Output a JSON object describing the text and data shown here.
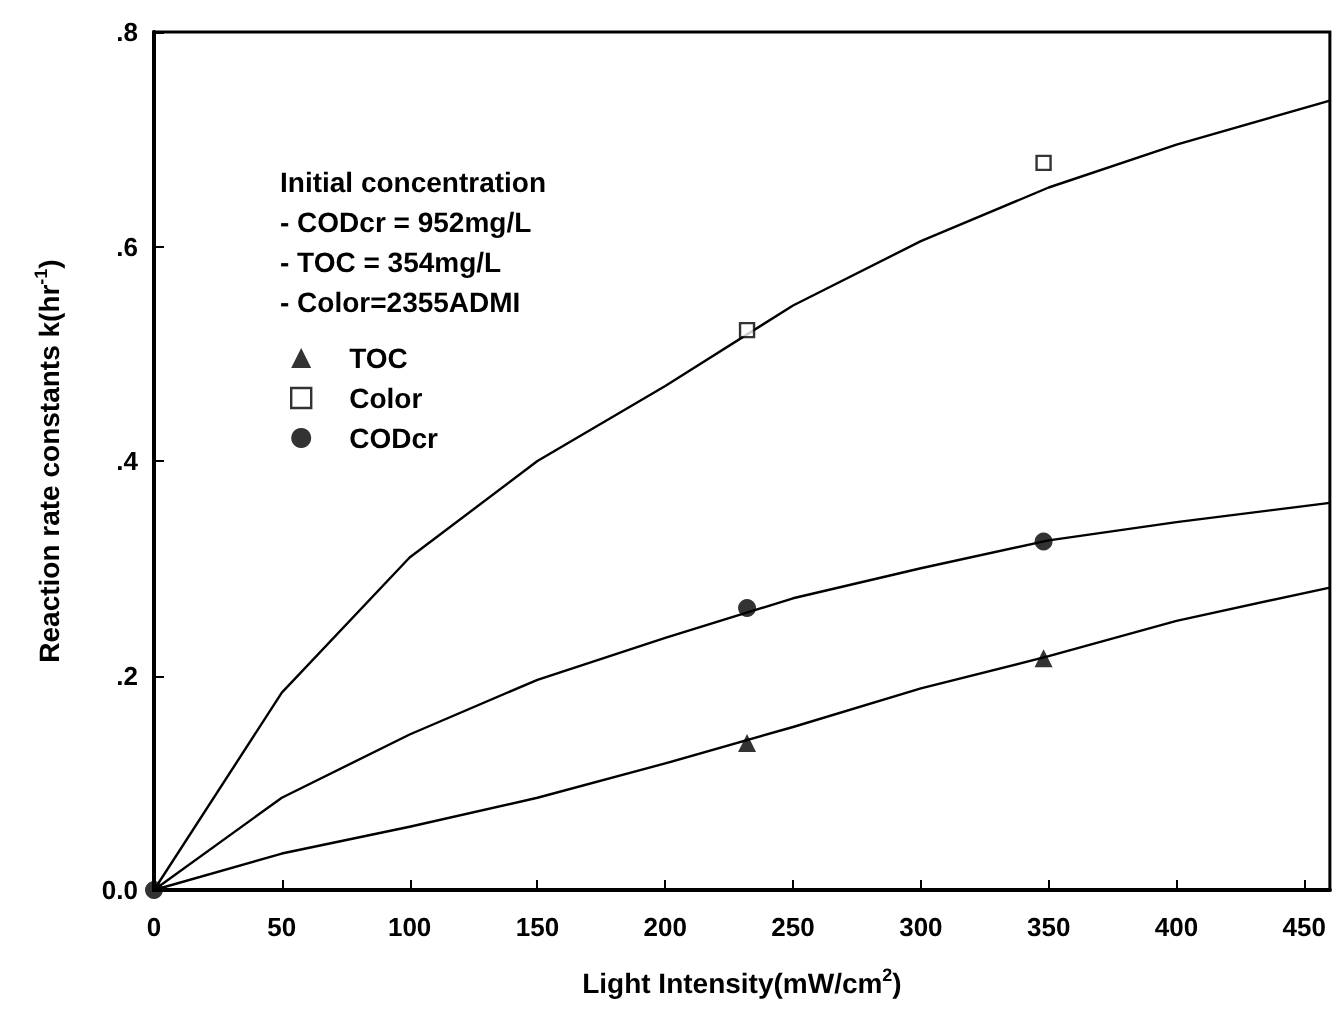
{
  "chart_data": {
    "type": "scatter",
    "xlabel": "Light Intensity(mW/cm$^{2}$)",
    "ylabel": "Reaction rate constants k(hr$^{-1}$)",
    "legend_title": "Initial concentration",
    "annotations": [
      "- CODcr = 952mg/L",
      "- TOC = 354mg/L",
      "- Color=2355ADMI"
    ],
    "series": [
      {
        "name": "TOC",
        "marker": "triangle",
        "color": "#000000",
        "x": [
          232,
          348
        ],
        "values": [
          0.137,
          0.216
        ]
      },
      {
        "name": "Color",
        "marker": "square",
        "color": "#000000",
        "x": [
          232,
          348
        ],
        "values": [
          0.522,
          0.678
        ]
      },
      {
        "name": "CODcr",
        "marker": "circle",
        "color": "#000000",
        "x": [
          0,
          232,
          348
        ],
        "values": [
          0,
          0.263,
          0.325
        ]
      },
      {
        "type": "line",
        "marker": "none",
        "line_style": "solid",
        "color": "#000000",
        "x": [
          0,
          50,
          100,
          150,
          200,
          250,
          300,
          350,
          400,
          460
        ],
        "values": [
          0,
          0.034,
          0.059,
          0.086,
          0.118,
          0.152,
          0.188,
          0.218,
          0.251,
          0.282
        ]
      },
      {
        "type": "line",
        "marker": "none",
        "line_style": "solid",
        "color": "#000000",
        "x": [
          0,
          50,
          100,
          150,
          200,
          250,
          300,
          350,
          400,
          460
        ],
        "values": [
          0,
          0.184,
          0.31,
          0.4,
          0.47,
          0.545,
          0.605,
          0.655,
          0.695,
          0.736
        ]
      },
      {
        "type": "line",
        "marker": "none",
        "line_style": "solid",
        "color": "#000000",
        "x": [
          0,
          50,
          100,
          150,
          200,
          250,
          300,
          350,
          400,
          460
        ],
        "values": [
          0,
          0.086,
          0.145,
          0.196,
          0.235,
          0.272,
          0.3,
          0.326,
          0.343,
          0.361
        ]
      }
    ],
    "xlim": [
      0,
      460
    ],
    "xticks": [
      0,
      50,
      100,
      150,
      200,
      250,
      300,
      350,
      400,
      450
    ],
    "ylim": [
      0,
      0.8
    ],
    "yticks": [
      {
        "value": 0,
        "label": "0.0"
      },
      {
        "value": 0.2,
        "label": ".2"
      },
      {
        "value": 0.4,
        "label": ".4"
      },
      {
        "value": 0.6,
        "label": ".6"
      },
      {
        "value": 0.8,
        "label": ".8"
      }
    ],
    "grid": false,
    "legend": "top left"
  }
}
